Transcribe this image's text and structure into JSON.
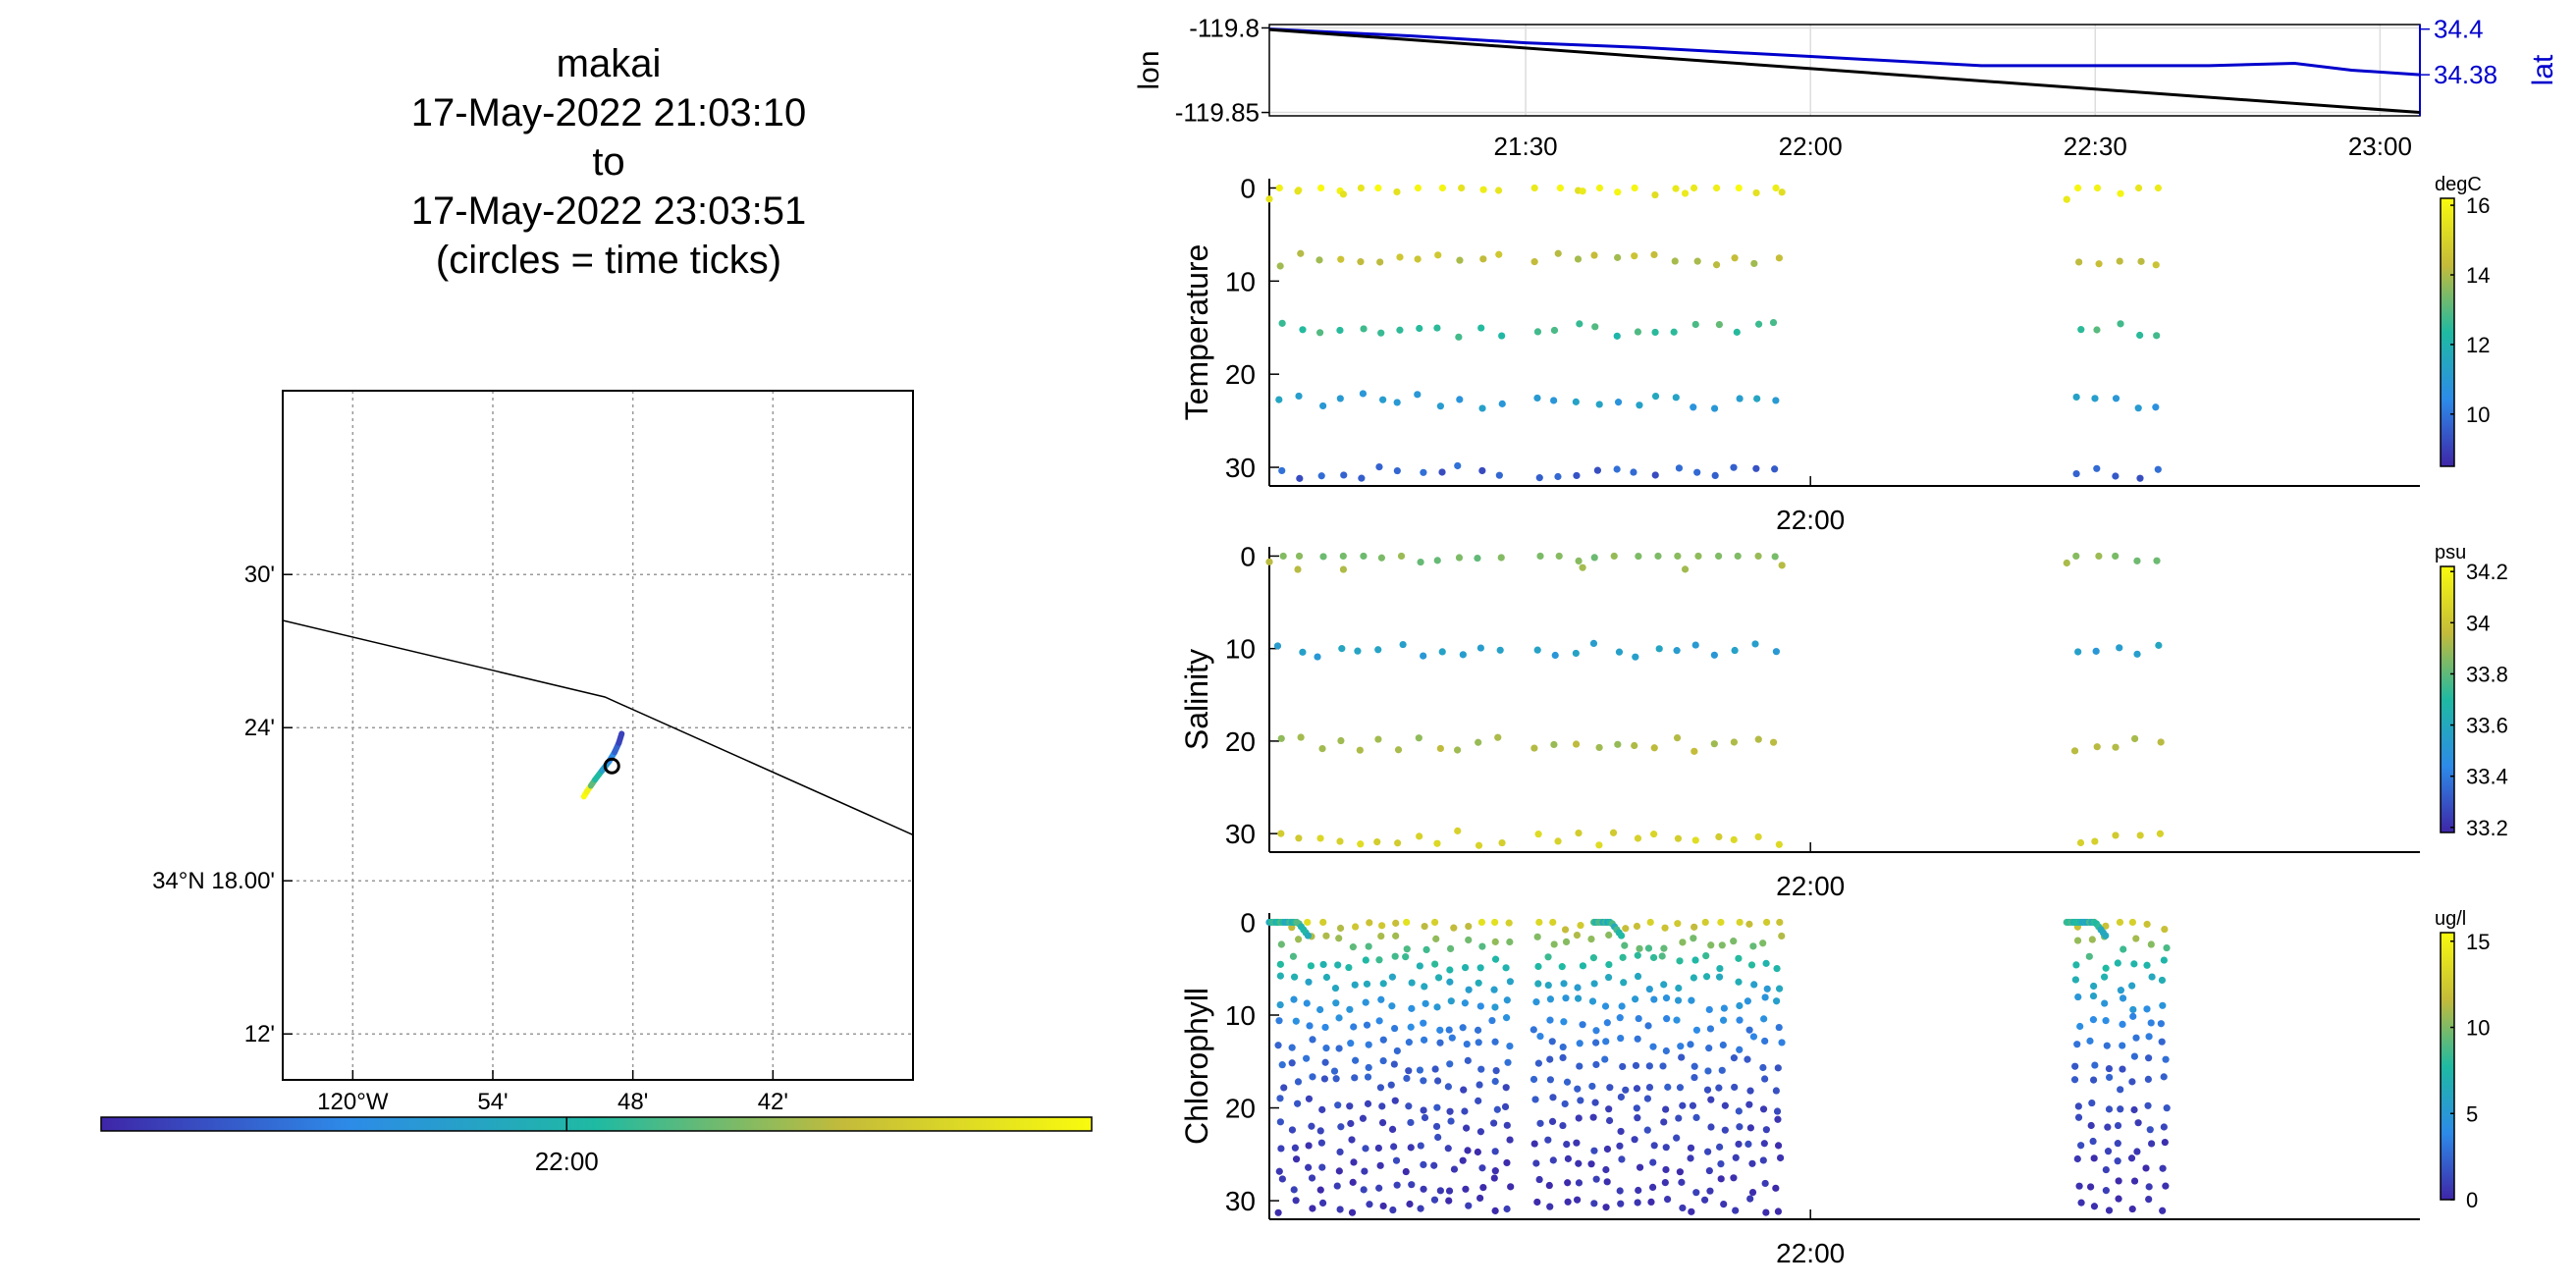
{
  "header": {
    "platform": "makai",
    "start": "17-May-2022 21:03:10",
    "to_word": "to",
    "end": "17-May-2022 23:03:51",
    "note": "(circles = time ticks)"
  },
  "colors": {
    "track_lon": "#000000",
    "track_lat": "#0000cc",
    "coast": "#000000",
    "grid": "#999999"
  },
  "chart_data": [
    {
      "id": "map",
      "type": "scatter",
      "title": "",
      "xlabel": "",
      "ylabel": "",
      "x_ticks": [
        "120°W",
        "54'",
        "48'",
        "42'"
      ],
      "x_tick_values": [
        -120.0,
        -119.9,
        -119.8,
        -119.7
      ],
      "y_ticks": [
        "12'",
        "34°N 18.00'",
        "24'",
        "30'"
      ],
      "y_tick_values": [
        34.2,
        34.3,
        34.4,
        34.5
      ],
      "xlim": [
        -120.05,
        -119.6
      ],
      "ylim": [
        34.17,
        34.62
      ],
      "grid": true,
      "coastline": {
        "lon": [
          -120.05,
          -119.82,
          -119.6
        ],
        "lat": [
          34.47,
          34.42,
          34.33
        ]
      },
      "track": {
        "lon": [
          -119.835,
          -119.833,
          -119.83,
          -119.827,
          -119.822,
          -119.817,
          -119.813,
          -119.81,
          -119.808
        ],
        "lat": [
          34.355,
          34.358,
          34.362,
          34.366,
          34.372,
          34.378,
          34.384,
          34.39,
          34.396
        ],
        "time_fraction": [
          1.0,
          0.97,
          0.6,
          0.5,
          0.35,
          0.25,
          0.15,
          0.07,
          0.0
        ]
      },
      "tick_circle": {
        "lon": -119.815,
        "lat": 34.375
      },
      "colorbar": {
        "tick_label": "22:00",
        "tick_fraction": 0.47
      }
    },
    {
      "id": "lonlat",
      "type": "line",
      "ylabel": "lon",
      "y2label": "lat",
      "xlim": [
        21.05,
        23.07
      ],
      "x_ticks": [
        "21:30",
        "22:00",
        "22:30",
        "23:00"
      ],
      "x_tick_values": [
        21.5,
        22.0,
        22.5,
        23.0
      ],
      "ylim": [
        -119.852,
        -119.798
      ],
      "y_ticks": [
        "-119.8",
        "-119.85"
      ],
      "y_tick_values": [
        -119.8,
        -119.85
      ],
      "y2lim": [
        34.362,
        34.402
      ],
      "y2_ticks": [
        "34.4",
        "34.38"
      ],
      "y2_tick_values": [
        34.4,
        34.38
      ],
      "grid": true,
      "series": [
        {
          "name": "lon",
          "x": [
            21.05,
            23.07
          ],
          "values": [
            -119.801,
            -119.85
          ]
        },
        {
          "name": "lat",
          "x": [
            21.05,
            21.3,
            21.5,
            21.7,
            22.0,
            22.3,
            22.5,
            22.7,
            22.85,
            22.95,
            23.07
          ],
          "values": [
            34.4,
            34.397,
            34.394,
            34.392,
            34.388,
            34.384,
            34.384,
            34.384,
            34.385,
            34.382,
            34.38
          ]
        }
      ]
    },
    {
      "id": "temperature",
      "type": "scatter",
      "ylabel": "Temperature",
      "units": "degC",
      "xlim": [
        21.05,
        23.07
      ],
      "x_ticks": [
        "22:00"
      ],
      "x_tick_values": [
        22.0
      ],
      "ylim": [
        32,
        -1
      ],
      "y_ticks": [
        "0",
        "10",
        "20",
        "30"
      ],
      "y_tick_values": [
        0,
        10,
        20,
        30
      ],
      "clim": [
        8.5,
        16.2
      ],
      "cbar_ticks": [
        "10",
        "12",
        "14",
        "16"
      ],
      "cbar_tick_values": [
        10,
        12,
        14,
        16
      ]
    },
    {
      "id": "salinity",
      "type": "scatter",
      "ylabel": "Salinity",
      "units": "psu",
      "xlim": [
        21.05,
        23.07
      ],
      "x_ticks": [
        "22:00"
      ],
      "x_tick_values": [
        22.0
      ],
      "ylim": [
        32,
        -1
      ],
      "y_ticks": [
        "0",
        "10",
        "20",
        "30"
      ],
      "y_tick_values": [
        0,
        10,
        20,
        30
      ],
      "clim": [
        33.18,
        34.22
      ],
      "cbar_ticks": [
        "33.2",
        "33.4",
        "33.6",
        "33.8",
        "34",
        "34.2"
      ],
      "cbar_tick_values": [
        33.2,
        33.4,
        33.6,
        33.8,
        34.0,
        34.2
      ]
    },
    {
      "id": "chlorophyll",
      "type": "scatter",
      "ylabel": "Chlorophyll",
      "units": "ug/l",
      "xlim": [
        21.05,
        23.07
      ],
      "x_ticks": [
        "22:00"
      ],
      "x_tick_values": [
        22.0
      ],
      "ylim": [
        32,
        -1
      ],
      "y_ticks": [
        "0",
        "10",
        "20",
        "30"
      ],
      "y_tick_values": [
        0,
        10,
        20,
        30
      ],
      "clim": [
        0,
        15.5
      ],
      "cbar_ticks": [
        "0",
        "5",
        "10",
        "15"
      ],
      "cbar_tick_values": [
        0,
        5,
        10,
        15
      ]
    }
  ]
}
